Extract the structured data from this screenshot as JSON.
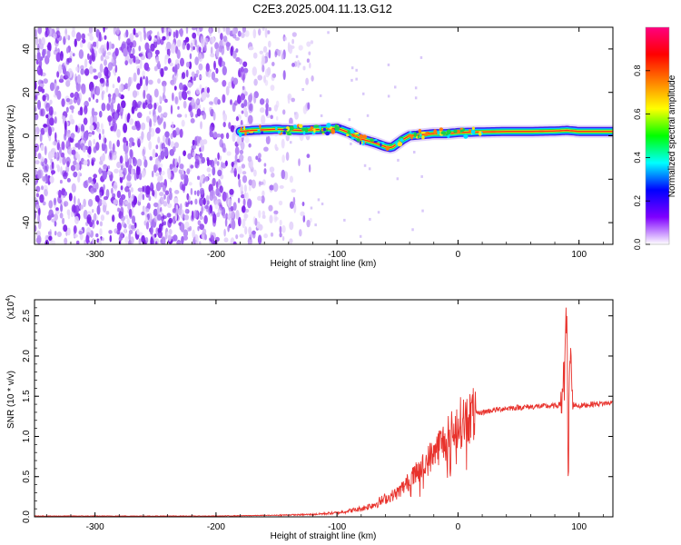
{
  "title": "C2E3.2025.004.11.13.G12",
  "chart_data": [
    {
      "type": "heatmap",
      "xlabel": "Height of straight line (km)",
      "ylabel": "Frequency (Hz)",
      "xlim": [
        -350,
        128
      ],
      "ylim": [
        -50,
        50
      ],
      "xticks": [
        -300,
        -200,
        -100,
        0,
        100
      ],
      "yticks": [
        -40,
        -20,
        0,
        20,
        40
      ],
      "colorbar": {
        "label": "Normalized spectral amplitude",
        "range": [
          0.0,
          1.0
        ],
        "ticks": [
          "0.0",
          "0.2",
          "0.4",
          "0.6",
          "0.8"
        ],
        "colors": [
          "#ffffff",
          "#7f00ff",
          "#0000ff",
          "#00ffff",
          "#00ff00",
          "#ffff00",
          "#ff7f00",
          "#ff0000",
          "#ff0080"
        ]
      },
      "ridge": {
        "x": [
          -180,
          -170,
          -150,
          -130,
          -110,
          -100,
          -90,
          -80,
          -70,
          -60,
          -55,
          -50,
          -45,
          -40,
          -30,
          -20,
          -10,
          0,
          20,
          40,
          60,
          80,
          90,
          100,
          110,
          128
        ],
        "y": [
          2,
          2.5,
          3,
          2.5,
          3,
          3.5,
          1.5,
          -1.5,
          -3,
          -5,
          -5.5,
          -3.5,
          -1.5,
          0,
          0.5,
          1,
          1,
          1.5,
          1.8,
          2,
          2,
          2.2,
          2.5,
          2,
          2,
          2
        ]
      },
      "noise_region_x": [
        -350,
        -140
      ]
    },
    {
      "type": "line",
      "xlabel": "Height of straight line (km)",
      "ylabel": "SNR (10 * v/v)",
      "y_multiplier": "(x10",
      "y_multiplier_exp": "4",
      "y_multiplier_close": ")",
      "xlim": [
        -350,
        128
      ],
      "ylim": [
        0,
        2.7
      ],
      "xticks": [
        -300,
        -200,
        -100,
        0,
        100
      ],
      "yticks": [
        "0.0",
        "0.5",
        "1.0",
        "1.5",
        "2.0",
        "2.5"
      ],
      "color": "#e8322c",
      "series": [
        {
          "x": [
            -350,
            -300,
            -250,
            -200,
            -150,
            -120,
            -100,
            -80,
            -70,
            -60,
            -50,
            -40,
            -30,
            -25,
            -20,
            -15,
            -10,
            -5,
            0,
            10,
            20,
            30,
            40,
            60,
            80,
            85,
            88,
            90,
            91,
            92,
            95,
            100,
            110,
            120,
            128
          ],
          "y": [
            0.01,
            0.01,
            0.01,
            0.01,
            0.02,
            0.03,
            0.05,
            0.1,
            0.15,
            0.22,
            0.3,
            0.45,
            0.6,
            0.7,
            0.8,
            0.9,
            0.95,
            1.05,
            1.15,
            1.25,
            1.3,
            1.33,
            1.35,
            1.37,
            1.38,
            1.4,
            1.6,
            2.7,
            0.3,
            2.1,
            1.4,
            1.38,
            1.4,
            1.41,
            1.42
          ]
        }
      ]
    }
  ]
}
